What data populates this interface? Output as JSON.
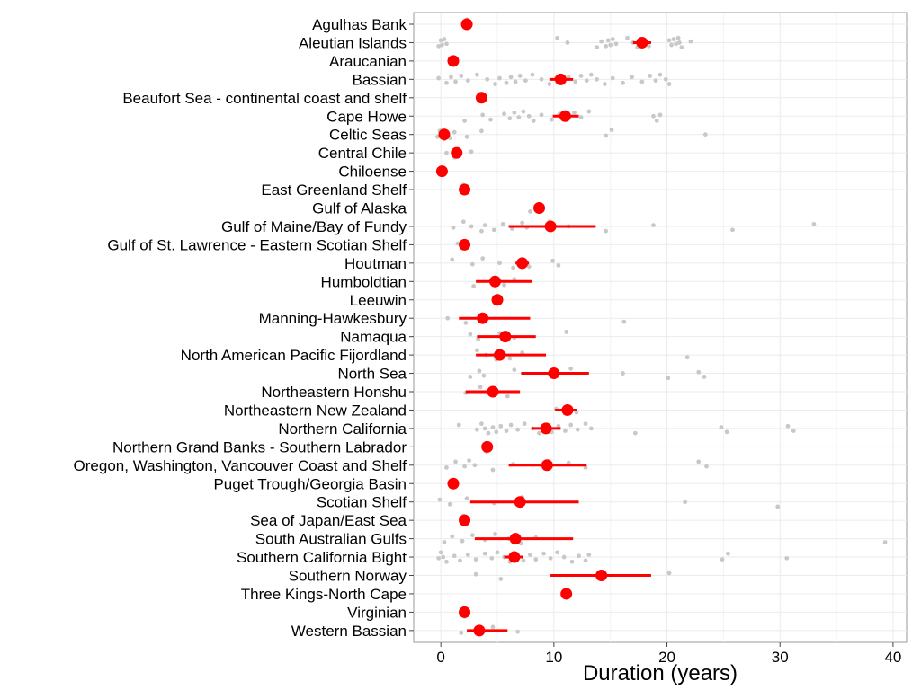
{
  "chart_data": {
    "type": "scatter",
    "title": "",
    "xlabel": "Duration (years)",
    "ylabel": "",
    "xlim": [
      -2.4,
      41.2
    ],
    "xticks": [
      0,
      10,
      20,
      30,
      40
    ],
    "grid": true,
    "legend": "none",
    "colors": {
      "raw": "#c8c8c8",
      "mean": "#ff0000",
      "grid": "#ebebeb",
      "panel_border": "#9a9a9a"
    },
    "categories": [
      "Agulhas Bank",
      "Aleutian Islands",
      "Araucanian",
      "Bassian",
      "Beaufort Sea - continental coast and shelf",
      "Cape Howe",
      "Celtic Seas",
      "Central Chile",
      "Chiloense",
      "East Greenland Shelf",
      "Gulf of Alaska",
      "Gulf of Maine/Bay of Fundy",
      "Gulf of St. Lawrence - Eastern Scotian Shelf",
      "Houtman",
      "Humboldtian",
      "Leeuwin",
      "Manning-Hawkesbury",
      "Namaqua",
      "North American Pacific Fijordland",
      "North Sea",
      "Northeastern Honshu",
      "Northeastern New Zealand",
      "Northern California",
      "Northern Grand Banks - Southern Labrador",
      "Oregon, Washington, Vancouver Coast and Shelf",
      "Puget Trough/Georgia Basin",
      "Scotian Shelf",
      "Sea of Japan/East Sea",
      "South Australian Gulfs",
      "Southern California Bight",
      "Southern Norway",
      "Three Kings-North Cape",
      "Virginian",
      "Western Bassian"
    ],
    "series": [
      {
        "name": "",
        "role": "mean with error bar",
        "values": [
          {
            "category": "Agulhas Bank",
            "x": 2.3
          },
          {
            "category": "Aleutian Islands",
            "x": 17.8,
            "lo": 17.0,
            "hi": 18.6
          },
          {
            "category": "Araucanian",
            "x": 1.1
          },
          {
            "category": "Bassian",
            "x": 10.6,
            "lo": 9.6,
            "hi": 11.7
          },
          {
            "category": "Beaufort Sea - continental coast and shelf",
            "x": 3.6
          },
          {
            "category": "Cape Howe",
            "x": 11.0,
            "lo": 9.9,
            "hi": 12.2
          },
          {
            "category": "Celtic Seas",
            "x": 0.3,
            "lo": 0.0,
            "hi": 0.7
          },
          {
            "category": "Central Chile",
            "x": 1.4
          },
          {
            "category": "Chiloense",
            "x": 0.1
          },
          {
            "category": "East Greenland Shelf",
            "x": 2.1
          },
          {
            "category": "Gulf of Alaska",
            "x": 8.7
          },
          {
            "category": "Gulf of Maine/Bay of Fundy",
            "x": 9.7,
            "lo": 6.0,
            "hi": 13.7
          },
          {
            "category": "Gulf of St. Lawrence - Eastern Scotian Shelf",
            "x": 2.1
          },
          {
            "category": "Houtman",
            "x": 7.2,
            "lo": 6.6,
            "hi": 7.8
          },
          {
            "category": "Humboldtian",
            "x": 4.8,
            "lo": 3.1,
            "hi": 8.1
          },
          {
            "category": "Leeuwin",
            "x": 5.0
          },
          {
            "category": "Manning-Hawkesbury",
            "x": 3.7,
            "lo": 1.6,
            "hi": 7.9
          },
          {
            "category": "Namaqua",
            "x": 5.7,
            "lo": 3.2,
            "hi": 8.4
          },
          {
            "category": "North American Pacific Fijordland",
            "x": 5.2,
            "lo": 3.1,
            "hi": 9.3
          },
          {
            "category": "North Sea",
            "x": 10.0,
            "lo": 7.1,
            "hi": 13.1
          },
          {
            "category": "Northeastern Honshu",
            "x": 4.6,
            "lo": 2.2,
            "hi": 7.0
          },
          {
            "category": "Northeastern New Zealand",
            "x": 11.2,
            "lo": 10.1,
            "hi": 12.0
          },
          {
            "category": "Northern California",
            "x": 9.3,
            "lo": 8.1,
            "hi": 10.6
          },
          {
            "category": "Northern Grand Banks - Southern Labrador",
            "x": 4.1
          },
          {
            "category": "Oregon, Washington, Vancouver Coast and Shelf",
            "x": 9.4,
            "lo": 6.0,
            "hi": 12.9
          },
          {
            "category": "Puget Trough/Georgia Basin",
            "x": 1.1
          },
          {
            "category": "Scotian Shelf",
            "x": 7.0,
            "lo": 2.6,
            "hi": 12.2
          },
          {
            "category": "Sea of Japan/East Sea",
            "x": 2.1
          },
          {
            "category": "South Australian Gulfs",
            "x": 6.6,
            "lo": 3.0,
            "hi": 11.7
          },
          {
            "category": "Southern California Bight",
            "x": 6.5,
            "lo": 5.6,
            "hi": 7.3
          },
          {
            "category": "Southern Norway",
            "x": 14.2,
            "lo": 9.7,
            "hi": 18.6
          },
          {
            "category": "Three Kings-North Cape",
            "x": 11.1
          },
          {
            "category": "Virginian",
            "x": 2.1
          },
          {
            "category": "Western Bassian",
            "x": 3.4,
            "lo": 2.3,
            "hi": 5.9
          }
        ]
      },
      {
        "name": "",
        "role": "individual observations (jittered)",
        "values": [
          {
            "category": "Agulhas Bank",
            "x": [
              2.3,
              2.6
            ]
          },
          {
            "category": "Aleutian Islands",
            "x": [
              -0.2,
              0.0,
              0.1,
              0.3,
              0.5,
              10.3,
              11.2,
              13.8,
              14.2,
              14.6,
              14.8,
              15.0,
              15.2,
              15.5,
              16.5,
              17.0,
              17.4,
              18.0,
              18.4,
              20.2,
              20.4,
              20.6,
              20.8,
              21.0,
              21.1,
              21.3,
              22.1
            ]
          },
          {
            "category": "Araucanian",
            "x": [
              1.1
            ]
          },
          {
            "category": "Bassian",
            "x": [
              -0.2,
              0.5,
              0.9,
              1.3,
              1.8,
              2.4,
              3.2,
              4.1,
              4.8,
              5.2,
              5.8,
              6.2,
              6.6,
              7.0,
              7.5,
              8.1,
              8.9,
              9.6,
              10.2,
              10.7,
              11.3,
              11.9,
              12.4,
              12.9,
              13.3,
              13.8,
              14.5,
              15.2,
              16.1,
              16.9,
              17.8,
              18.5,
              19.0,
              19.4,
              19.9,
              20.2
            ]
          },
          {
            "category": "Beaufort Sea - continental coast and shelf",
            "x": [
              3.6,
              3.9
            ]
          },
          {
            "category": "Cape Howe",
            "x": [
              2.1,
              3.7,
              4.4,
              5.6,
              6.1,
              6.5,
              6.9,
              7.3,
              7.8,
              8.2,
              8.9,
              9.8,
              10.5,
              11.2,
              11.8,
              12.4,
              13.1,
              18.8,
              19.1,
              19.4
            ]
          },
          {
            "category": "Celtic Seas",
            "x": [
              -0.3,
              -0.1,
              0.0,
              0.1,
              0.2,
              0.3,
              0.5,
              0.8,
              1.2,
              2.3,
              3.6,
              14.6,
              15.1,
              23.4
            ]
          },
          {
            "category": "Central Chile",
            "x": [
              0.5,
              1.2,
              2.7
            ]
          },
          {
            "category": "Chiloense",
            "x": [
              0.0,
              0.1
            ]
          },
          {
            "category": "East Greenland Shelf",
            "x": [
              2.0
            ]
          },
          {
            "category": "Gulf of Alaska",
            "x": [
              7.9,
              8.6,
              9.0
            ]
          },
          {
            "category": "Gulf of Maine/Bay of Fundy",
            "x": [
              1.1,
              2.0,
              2.7,
              3.6,
              3.9,
              4.7,
              5.5,
              6.3,
              7.2,
              7.6,
              9.6,
              11.3,
              14.6,
              18.8,
              25.8,
              33.0
            ]
          },
          {
            "category": "Gulf of St. Lawrence - Eastern Scotian Shelf",
            "x": [
              1.5,
              1.9,
              2.3
            ]
          },
          {
            "category": "Houtman",
            "x": [
              1.0,
              2.8,
              3.7,
              5.2,
              6.4,
              7.1,
              7.8,
              9.9,
              10.4
            ]
          },
          {
            "category": "Humboldtian",
            "x": [
              2.9,
              4.6,
              5.6,
              6.5
            ]
          },
          {
            "category": "Leeuwin",
            "x": [
              5.0
            ]
          },
          {
            "category": "Manning-Hawkesbury",
            "x": [
              0.6,
              2.2,
              3.7,
              16.2
            ]
          },
          {
            "category": "Namaqua",
            "x": [
              2.6,
              3.3,
              5.2,
              6.5,
              11.1
            ]
          },
          {
            "category": "North American Pacific Fijordland",
            "x": [
              3.2,
              4.0,
              4.9,
              5.6,
              6.1,
              7.2,
              21.8
            ]
          },
          {
            "category": "North Sea",
            "x": [
              2.6,
              3.4,
              3.8,
              6.5,
              9.9,
              11.5,
              16.1,
              20.1,
              22.8,
              23.3
            ]
          },
          {
            "category": "Northeastern Honshu",
            "x": [
              2.2,
              3.5,
              4.6,
              5.9
            ]
          },
          {
            "category": "Northeastern New Zealand",
            "x": [
              10.2,
              11.0,
              11.5,
              12.0
            ]
          },
          {
            "category": "Northern California",
            "x": [
              1.6,
              3.2,
              3.6,
              3.9,
              4.2,
              4.6,
              4.9,
              5.3,
              5.8,
              6.2,
              6.8,
              7.4,
              8.1,
              8.7,
              9.2,
              9.8,
              10.4,
              11.0,
              11.5,
              12.1,
              12.8,
              13.3,
              17.2,
              24.8,
              25.3,
              30.7,
              31.2
            ]
          },
          {
            "category": "Northern Grand Banks - Southern Labrador",
            "x": [
              4.0
            ]
          },
          {
            "category": "Oregon, Washington, Vancouver Coast and Shelf",
            "x": [
              0.5,
              1.3,
              2.1,
              2.5,
              3.0,
              4.6,
              6.4,
              9.2,
              11.3,
              12.8,
              22.8,
              23.5
            ]
          },
          {
            "category": "Puget Trough/Georgia Basin",
            "x": [
              1.1
            ]
          },
          {
            "category": "Scotian Shelf",
            "x": [
              -0.1,
              0.8,
              2.3,
              4.7,
              7.2,
              21.6,
              29.8
            ]
          },
          {
            "category": "Sea of Japan/East Sea",
            "x": [
              2.0
            ]
          },
          {
            "category": "South Australian Gulfs",
            "x": [
              0.3,
              1.0,
              1.9,
              2.8,
              3.9,
              4.8,
              6.0,
              7.1,
              8.4,
              39.3
            ]
          },
          {
            "category": "Southern California Bight",
            "x": [
              -0.2,
              0.0,
              0.2,
              0.5,
              1.2,
              1.7,
              2.4,
              3.1,
              3.9,
              4.5,
              5.0,
              5.6,
              6.1,
              6.6,
              7.3,
              7.9,
              8.4,
              9.1,
              9.7,
              10.3,
              10.9,
              11.6,
              12.2,
              12.8,
              13.1,
              24.9,
              25.4,
              30.6
            ]
          },
          {
            "category": "Southern Norway",
            "x": [
              3.1,
              5.3,
              20.2
            ]
          },
          {
            "category": "Three Kings-North Cape",
            "x": [
              11.0
            ]
          },
          {
            "category": "Virginian",
            "x": [
              2.1
            ]
          },
          {
            "category": "Western Bassian",
            "x": [
              1.8,
              4.6,
              6.8
            ]
          }
        ]
      }
    ]
  }
}
